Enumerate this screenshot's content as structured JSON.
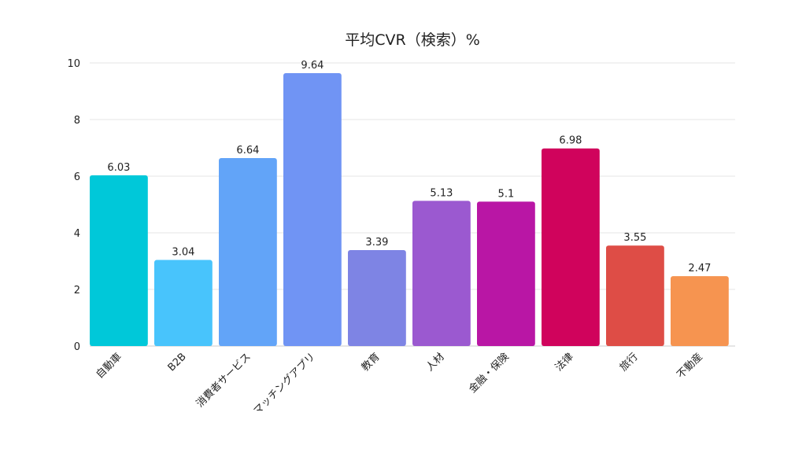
{
  "chart_data": {
    "type": "bar",
    "title": "平均CVR（検索）%",
    "categories": [
      "自動車",
      "B2B",
      "消費者サービス",
      "マッチングアプリ",
      "教育",
      "人材",
      "金融・保険",
      "法律",
      "旅行",
      "不動産"
    ],
    "values": [
      6.03,
      3.04,
      6.64,
      9.64,
      3.39,
      5.13,
      5.1,
      6.98,
      3.55,
      2.47
    ],
    "data_labels": [
      "6.03",
      "3.04",
      "6.64",
      "9.64",
      "3.39",
      "5.13",
      "5.1",
      "6.98",
      "3.55",
      "2.47"
    ],
    "colors": [
      "#00c8d9",
      "#48c4fc",
      "#62a4f8",
      "#7094f4",
      "#7e84e4",
      "#9b59d0",
      "#b916a5",
      "#d0035c",
      "#de4d46",
      "#f69450"
    ],
    "ylim": [
      0,
      10
    ],
    "yticks": [
      "0",
      "2",
      "4",
      "6",
      "8",
      "10"
    ],
    "grid": true,
    "xlabel": "",
    "ylabel": ""
  }
}
